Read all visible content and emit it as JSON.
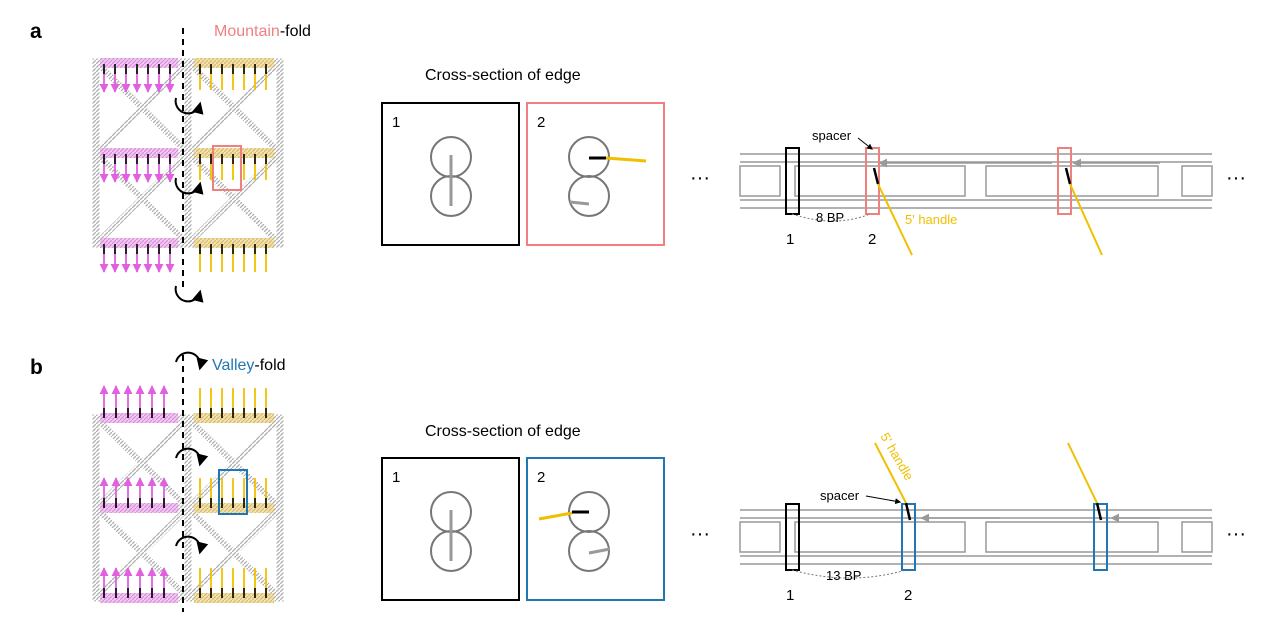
{
  "colors": {
    "magenta": "#e060e0",
    "gold": "#f0c000",
    "mountain": "#f08080",
    "valley": "#1f78b4",
    "lattice": "#a8a8a8",
    "helix": "#888888"
  },
  "panel_a": {
    "letter": "a",
    "fold_word": "Mountain",
    "fold_suffix": "-fold",
    "cross_section_title": "Cross-section of edge",
    "box1_label": "1",
    "box2_label": "2",
    "spacer_label": "spacer",
    "distance_label": "8 BP",
    "handle_label": "5' handle",
    "pos1_label": "1",
    "pos2_label": "2",
    "ellipsis_left": "···",
    "ellipsis_right": "···"
  },
  "panel_b": {
    "letter": "b",
    "fold_word": "Valley",
    "fold_suffix": "-fold",
    "cross_section_title": "Cross-section of edge",
    "box1_label": "1",
    "box2_label": "2",
    "spacer_label": "spacer",
    "distance_label": "13 BP",
    "handle_label": "5' handle",
    "pos1_label": "1",
    "pos2_label": "2",
    "ellipsis_left": "···",
    "ellipsis_right": "···"
  }
}
